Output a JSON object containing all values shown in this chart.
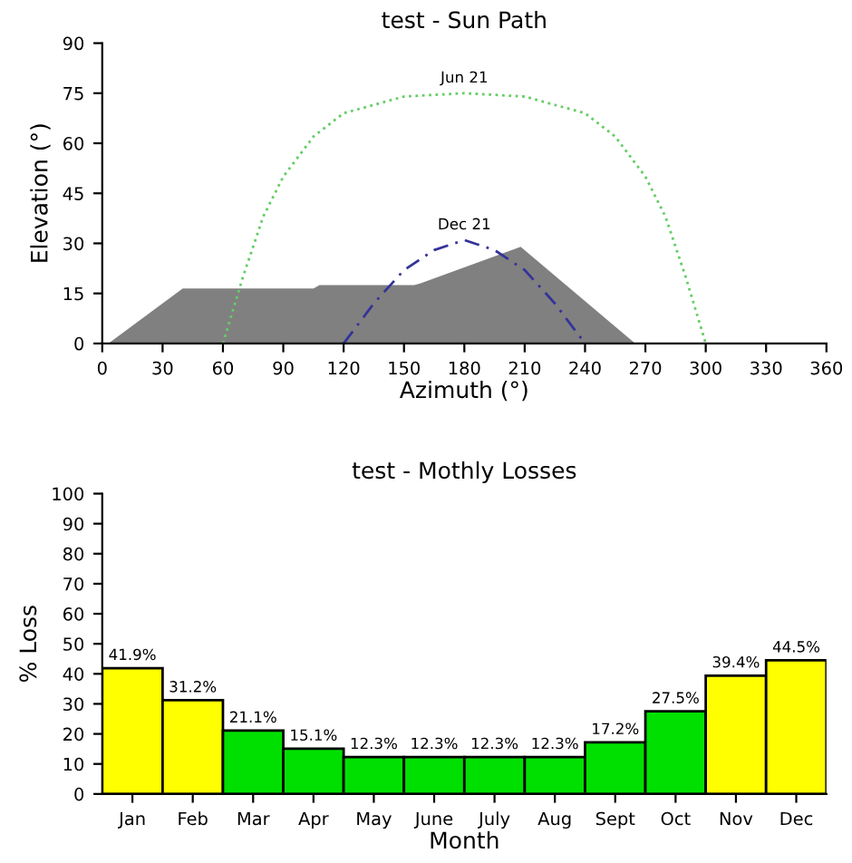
{
  "chart_data": [
    {
      "type": "line",
      "title": "test - Sun Path",
      "xlabel": "Azimuth (°)",
      "ylabel": "Elevation (°)",
      "xlim": [
        0,
        360
      ],
      "xticks": [
        0,
        30,
        60,
        90,
        120,
        150,
        180,
        210,
        240,
        270,
        300,
        330,
        360
      ],
      "ylim": [
        0,
        90
      ],
      "yticks": [
        0,
        15,
        30,
        45,
        60,
        75,
        90
      ],
      "grid": false,
      "series": [
        {
          "type": "area",
          "color": "#808080",
          "x": [
            3,
            40,
            105,
            108,
            155,
            158,
            208,
            265
          ],
          "values": [
            0,
            16.5,
            16.5,
            17.5,
            17.5,
            18,
            29,
            0
          ]
        },
        {
          "type": "line",
          "color": "#66cc66",
          "line_style": "dotted",
          "x": [
            60,
            70,
            80,
            90,
            105,
            120,
            150,
            180,
            210,
            240,
            255,
            270,
            280,
            290,
            300
          ],
          "values": [
            0,
            20,
            38,
            50,
            62,
            69,
            74,
            75,
            74,
            69,
            62,
            50,
            38,
            20,
            0
          ]
        },
        {
          "type": "line",
          "color": "#333399",
          "line_style": "dashed",
          "x": [
            120,
            135,
            150,
            165,
            180,
            195,
            210,
            225,
            240
          ],
          "values": [
            0,
            12,
            22,
            28,
            31,
            28,
            22,
            12,
            0
          ]
        }
      ],
      "annotations": [
        {
          "text": "Jun 21",
          "x": 180,
          "y": 75
        },
        {
          "text": "Dec 21",
          "x": 180,
          "y": 31
        }
      ]
    },
    {
      "type": "bar",
      "title": "test - Mothly Losses",
      "xlabel": "Month",
      "ylabel": "% Loss",
      "categories": [
        "Jan",
        "Feb",
        "Mar",
        "Apr",
        "May",
        "June",
        "July",
        "Aug",
        "Sept",
        "Oct",
        "Nov",
        "Dec"
      ],
      "values": [
        41.9,
        31.2,
        21.1,
        15.1,
        12.3,
        12.3,
        12.3,
        12.3,
        17.2,
        27.5,
        39.4,
        44.5
      ],
      "value_labels": [
        "41.9%",
        "31.2%",
        "21.1%",
        "15.1%",
        "12.3%",
        "12.3%",
        "12.3%",
        "12.3%",
        "17.2%",
        "27.5%",
        "39.4%",
        "44.5%"
      ],
      "colors": [
        "#ffff00",
        "#ffff00",
        "#00e000",
        "#00e000",
        "#00e000",
        "#00e000",
        "#00e000",
        "#00e000",
        "#00e000",
        "#00e000",
        "#ffff00",
        "#ffff00"
      ],
      "ylim": [
        0,
        100
      ],
      "yticks": [
        0,
        10,
        20,
        30,
        40,
        50,
        60,
        70,
        80,
        90,
        100
      ],
      "grid": false
    }
  ]
}
